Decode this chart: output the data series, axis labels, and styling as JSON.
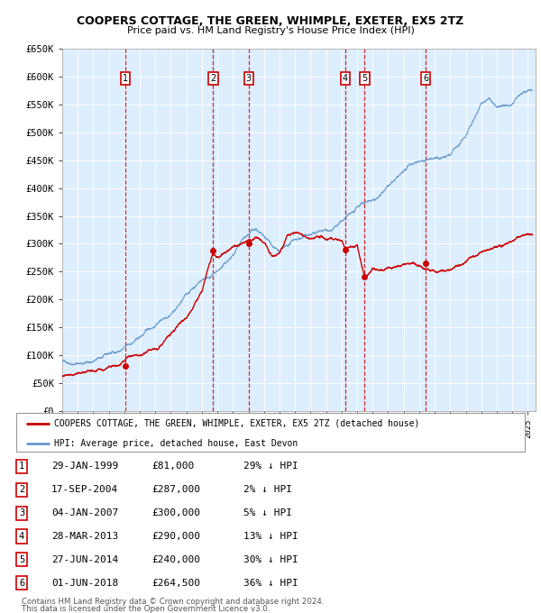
{
  "title": "COOPERS COTTAGE, THE GREEN, WHIMPLE, EXETER, EX5 2TZ",
  "subtitle": "Price paid vs. HM Land Registry's House Price Index (HPI)",
  "legend_property": "COOPERS COTTAGE, THE GREEN, WHIMPLE, EXETER, EX5 2TZ (detached house)",
  "legend_hpi": "HPI: Average price, detached house, East Devon",
  "footer1": "Contains HM Land Registry data © Crown copyright and database right 2024.",
  "footer2": "This data is licensed under the Open Government Licence v3.0.",
  "ylim": [
    0,
    650000
  ],
  "yticks": [
    0,
    50000,
    100000,
    150000,
    200000,
    250000,
    300000,
    350000,
    400000,
    450000,
    500000,
    550000,
    600000,
    650000
  ],
  "ytick_labels": [
    "£0",
    "£50K",
    "£100K",
    "£150K",
    "£200K",
    "£250K",
    "£300K",
    "£350K",
    "£400K",
    "£450K",
    "£500K",
    "£550K",
    "£600K",
    "£650K"
  ],
  "xlim_start": 1995.0,
  "xlim_end": 2025.5,
  "sale_events": [
    {
      "num": 1,
      "year_dec": 1999.08,
      "price": 81000,
      "label": "29-JAN-1999",
      "pct": "29%",
      "dir": "↓"
    },
    {
      "num": 2,
      "year_dec": 2004.72,
      "price": 287000,
      "label": "17-SEP-2004",
      "pct": "2%",
      "dir": "↓"
    },
    {
      "num": 3,
      "year_dec": 2007.01,
      "price": 300000,
      "label": "04-JAN-2007",
      "pct": "5%",
      "dir": "↓"
    },
    {
      "num": 4,
      "year_dec": 2013.24,
      "price": 290000,
      "label": "28-MAR-2013",
      "pct": "13%",
      "dir": "↓"
    },
    {
      "num": 5,
      "year_dec": 2014.49,
      "price": 240000,
      "label": "27-JUN-2014",
      "pct": "30%",
      "dir": "↓"
    },
    {
      "num": 6,
      "year_dec": 2018.42,
      "price": 264500,
      "label": "01-JUN-2018",
      "pct": "36%",
      "dir": "↓"
    }
  ],
  "property_color": "#cc0000",
  "hpi_color": "#6699cc",
  "bg_color": "#ddeeff",
  "grid_color": "#ccddee",
  "vline_color": "#cc0000",
  "hpi_data": {
    "years": [
      1995.0,
      1996.0,
      1997.0,
      1998.0,
      1999.0,
      2000.0,
      2001.0,
      2002.0,
      2003.0,
      2004.0,
      2005.0,
      2006.0,
      2007.0,
      2007.5,
      2008.0,
      2008.5,
      2009.0,
      2009.5,
      2010.0,
      2011.0,
      2012.0,
      2013.0,
      2014.0,
      2015.0,
      2016.0,
      2017.0,
      2018.0,
      2019.0,
      2020.0,
      2021.0,
      2022.0,
      2022.5,
      2023.0,
      2024.0,
      2025.3
    ],
    "values": [
      88000,
      90000,
      95000,
      103000,
      112000,
      128000,
      150000,
      178000,
      210000,
      240000,
      255000,
      278000,
      305000,
      315000,
      295000,
      278000,
      265000,
      268000,
      280000,
      288000,
      295000,
      308000,
      322000,
      338000,
      358000,
      378000,
      400000,
      405000,
      408000,
      445000,
      505000,
      515000,
      498000,
      505000,
      530000
    ]
  },
  "prop_data": {
    "years": [
      1995.0,
      1996.0,
      1997.0,
      1998.0,
      1999.0,
      1999.08,
      1999.5,
      2000.0,
      2001.0,
      2002.0,
      2003.0,
      2004.0,
      2004.72,
      2005.0,
      2006.0,
      2007.01,
      2007.5,
      2008.0,
      2008.5,
      2009.0,
      2009.5,
      2010.0,
      2011.0,
      2012.0,
      2013.0,
      2013.24,
      2013.5,
      2014.0,
      2014.49,
      2015.0,
      2016.0,
      2017.0,
      2018.0,
      2018.42,
      2019.0,
      2020.0,
      2021.0,
      2022.0,
      2023.0,
      2024.0,
      2025.3
    ],
    "values": [
      62000,
      63000,
      66000,
      70000,
      78000,
      81000,
      82000,
      88000,
      100000,
      128000,
      162000,
      210000,
      287000,
      278000,
      292000,
      300000,
      308000,
      295000,
      270000,
      278000,
      308000,
      312000,
      300000,
      295000,
      305000,
      290000,
      295000,
      300000,
      240000,
      252000,
      260000,
      265000,
      273000,
      264500,
      265000,
      272000,
      292000,
      308000,
      315000,
      328000,
      342000
    ]
  }
}
